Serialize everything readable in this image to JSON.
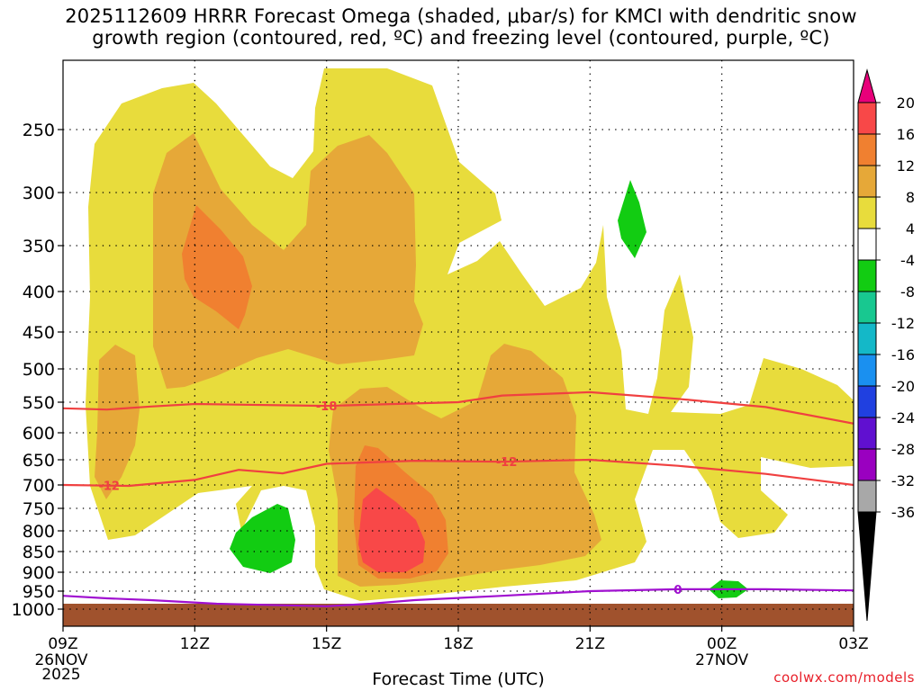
{
  "title": {
    "line1": "2025112609 HRRR Forecast Omega (shaded, μbar/s) for KMCI with dendritic snow",
    "line2": "growth region (contoured, red, ºC) and freezing level (contoured, purple, ºC)"
  },
  "chart_data": {
    "type": "time-height cross section",
    "xlabel": "Forecast Time (UTC)",
    "x_ticks": [
      {
        "label": "09Z",
        "date": "26NOV",
        "year": "2025",
        "hour": 0
      },
      {
        "label": "12Z",
        "hour": 3
      },
      {
        "label": "15Z",
        "hour": 6
      },
      {
        "label": "18Z",
        "hour": 9
      },
      {
        "label": "21Z",
        "hour": 12
      },
      {
        "label": "00Z",
        "date": "27NOV",
        "hour": 15
      },
      {
        "label": "03Z",
        "hour": 18
      }
    ],
    "xlim_hours": [
      0,
      18
    ],
    "y_ticks": [
      "250",
      "300",
      "350",
      "400",
      "450",
      "500",
      "550",
      "600",
      "650",
      "700",
      "750",
      "800",
      "850",
      "900",
      "950",
      "1000"
    ],
    "ylim_hpa": [
      200,
      1030
    ],
    "colorbar": {
      "unit": "μbar/s",
      "labels": [
        "20",
        "16",
        "12",
        "8",
        "4",
        "-4",
        "-8",
        "-12",
        "-16",
        "-20",
        "-24",
        "-28",
        "-32",
        "-36"
      ],
      "colors": [
        "#e8007a",
        "#f84848",
        "#f08030",
        "#e6a838",
        "#e8dc3c",
        "#ffffff",
        "#12cc12",
        "#18c890",
        "#14b8c8",
        "#1a90f0",
        "#2040e0",
        "#6010d0",
        "#9a00c0",
        "#a8a8a8",
        "#000000"
      ]
    },
    "contours": [
      {
        "label": "-18",
        "color": "#f04040",
        "variable": "temperature (ºC)",
        "points": [
          [
            0,
            560
          ],
          [
            1,
            562
          ],
          [
            2,
            557
          ],
          [
            3,
            553
          ],
          [
            6,
            556
          ],
          [
            9,
            550
          ],
          [
            10,
            540
          ],
          [
            12,
            535
          ],
          [
            14,
            545
          ],
          [
            16,
            558
          ],
          [
            18,
            585
          ]
        ]
      },
      {
        "label": "-12",
        "color": "#f04040",
        "variable": "temperature (ºC)",
        "points": [
          [
            0,
            700
          ],
          [
            1.5,
            702
          ],
          [
            3,
            690
          ],
          [
            4,
            670
          ],
          [
            5,
            677
          ],
          [
            6,
            658
          ],
          [
            8,
            652
          ],
          [
            10,
            654
          ],
          [
            12,
            650
          ],
          [
            14,
            662
          ],
          [
            16,
            678
          ],
          [
            18,
            700
          ]
        ]
      },
      {
        "label": "0",
        "color": "#a010d0",
        "variable": "freezing level (ºC)",
        "points": [
          [
            0,
            963
          ],
          [
            1,
            970
          ],
          [
            2,
            975
          ],
          [
            3.5,
            985
          ],
          [
            6,
            992
          ],
          [
            7,
            985
          ],
          [
            8,
            975
          ],
          [
            10,
            963
          ],
          [
            12,
            950
          ],
          [
            14,
            945
          ],
          [
            15,
            945
          ],
          [
            16,
            945
          ],
          [
            18,
            948
          ]
        ]
      }
    ],
    "terrain_hpa": 985,
    "terrain_color": "#a0522d"
  },
  "credit": "coolwx.com/models"
}
